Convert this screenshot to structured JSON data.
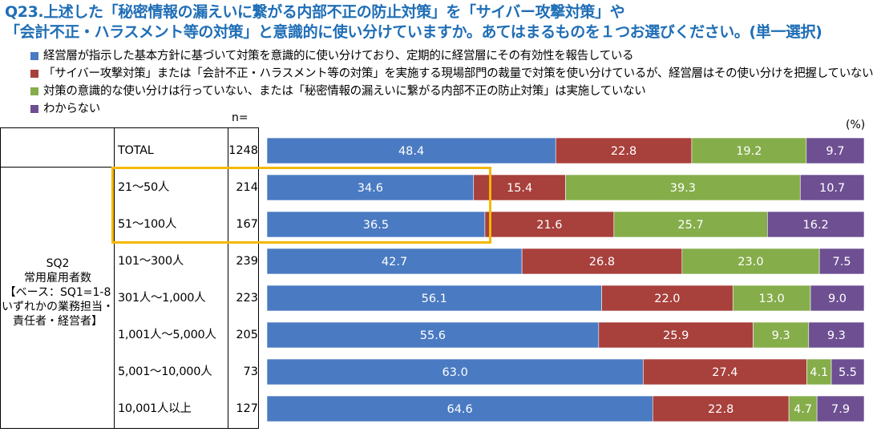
{
  "title": {
    "line1": "Q23.上述した「秘密情報の漏えいに繋がる内部不正の防止対策」を「サイバー攻撃対策」や",
    "line2": "「会計不正・ハラスメント等の対策」と意識的に使い分けていますか。あてはまるものを１つお選びください。(単一選択)"
  },
  "unit_label": "(%)",
  "n_label": "n=",
  "group": {
    "line1": "SQ2",
    "line2": "常用雇用者数",
    "line3": "【ベース：SQ1=1-8",
    "line4": "いずれかの業務担当・",
    "line5": "責任者・経営者】"
  },
  "colors": {
    "blue": "#4a7ac2",
    "red": "#a8403c",
    "green": "#85ad4a",
    "purple": "#6d4f92",
    "highlight": "#f5b800",
    "title": "#1f6eb6"
  },
  "chart_data": {
    "type": "bar",
    "orientation": "horizontal",
    "stacked": true,
    "title": "Q23.上述した「秘密情報の漏えいに繋がる内部不正の防止対策」を「サイバー攻撃対策」や「会計不正・ハラスメント等の対策」と意識的に使い分けていますか。あてはまるものを１つお選びください。(単一選択)",
    "unit": "(%)",
    "categories": [
      "TOTAL",
      "21～50人",
      "51～100人",
      "101～300人",
      "301人～1,000人",
      "1,001人～5,000人",
      "5,001～10,000人",
      "10,001人以上"
    ],
    "n": [
      1248,
      214,
      167,
      239,
      223,
      205,
      73,
      127
    ],
    "series": [
      {
        "name": "経営層が指示した基本方針に基づいて対策を意識的に使い分けており、定期的に経営層にその有効性を報告している",
        "color": "#4a7ac2",
        "values": [
          48.4,
          34.6,
          36.5,
          42.7,
          56.1,
          55.6,
          63.0,
          64.6
        ]
      },
      {
        "name": "「サイバー攻撃対策」または「会計不正・ハラスメント等の対策」を実施する現場部門の裁量で対策を使い分けているが、経営層はその使い分けを把握していない",
        "color": "#a8403c",
        "values": [
          22.8,
          15.4,
          21.6,
          26.8,
          22.0,
          25.9,
          27.4,
          22.8
        ]
      },
      {
        "name": "対策の意識的な使い分けは行っていない、または「秘密情報の漏えいに繋がる内部不正の防止対策」は実施していない",
        "color": "#85ad4a",
        "values": [
          19.2,
          39.3,
          25.7,
          23.0,
          13.0,
          9.3,
          4.1,
          4.7
        ]
      },
      {
        "name": "わからない",
        "color": "#6d4f92",
        "values": [
          9.7,
          10.7,
          16.2,
          7.5,
          9.0,
          9.3,
          5.5,
          7.9
        ]
      }
    ],
    "xlim": [
      0,
      100
    ],
    "legend": "top-left",
    "highlight_categories": [
      "21～50人",
      "51～100人"
    ]
  }
}
